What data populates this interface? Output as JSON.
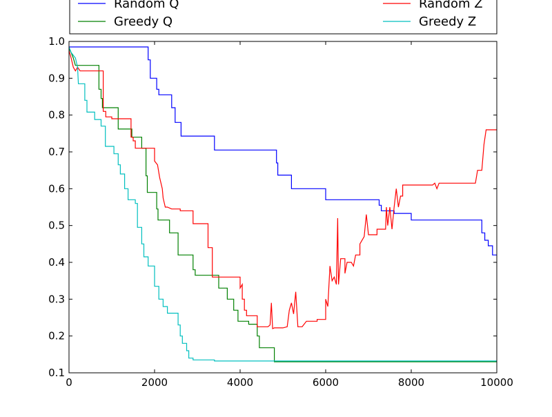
{
  "chart_data": {
    "type": "line",
    "xlim": [
      0,
      10000
    ],
    "ylim": [
      0.1,
      1.0
    ],
    "xticks": [
      "0",
      "2000",
      "4000",
      "6000",
      "8000",
      "10000"
    ],
    "yticks": [
      "0.1",
      "0.2",
      "0.3",
      "0.4",
      "0.5",
      "0.6",
      "0.7",
      "0.8",
      "0.9",
      "1.0"
    ],
    "grid": false,
    "legend": {
      "placement": "top (above plot, clipped)",
      "entries": [
        "Random Q",
        "Greedy Q",
        "Random Z",
        "Greedy Z"
      ]
    },
    "series": [
      {
        "name": "Random Q",
        "color": "#0000ff",
        "points": [
          [
            0,
            0.985
          ],
          [
            1850,
            0.985
          ],
          [
            1850,
            0.95
          ],
          [
            1900,
            0.95
          ],
          [
            1900,
            0.9
          ],
          [
            2050,
            0.9
          ],
          [
            2050,
            0.87
          ],
          [
            2100,
            0.87
          ],
          [
            2100,
            0.855
          ],
          [
            2400,
            0.855
          ],
          [
            2400,
            0.82
          ],
          [
            2480,
            0.82
          ],
          [
            2480,
            0.78
          ],
          [
            2620,
            0.78
          ],
          [
            2620,
            0.743
          ],
          [
            3400,
            0.743
          ],
          [
            3400,
            0.705
          ],
          [
            4850,
            0.705
          ],
          [
            4850,
            0.67
          ],
          [
            4880,
            0.67
          ],
          [
            4880,
            0.637
          ],
          [
            5200,
            0.637
          ],
          [
            5200,
            0.6
          ],
          [
            6000,
            0.6
          ],
          [
            6000,
            0.57
          ],
          [
            7250,
            0.57
          ],
          [
            7250,
            0.555
          ],
          [
            7300,
            0.555
          ],
          [
            7300,
            0.54
          ],
          [
            7600,
            0.54
          ],
          [
            7600,
            0.533
          ],
          [
            8000,
            0.533
          ],
          [
            8000,
            0.515
          ],
          [
            9650,
            0.515
          ],
          [
            9650,
            0.48
          ],
          [
            9720,
            0.48
          ],
          [
            9720,
            0.46
          ],
          [
            9800,
            0.46
          ],
          [
            9800,
            0.445
          ],
          [
            9900,
            0.445
          ],
          [
            9900,
            0.42
          ],
          [
            10000,
            0.42
          ]
        ]
      },
      {
        "name": "Greedy Q",
        "color": "#008000",
        "points": [
          [
            0,
            0.98
          ],
          [
            50,
            0.97
          ],
          [
            100,
            0.955
          ],
          [
            150,
            0.935
          ],
          [
            700,
            0.935
          ],
          [
            700,
            0.87
          ],
          [
            750,
            0.87
          ],
          [
            750,
            0.845
          ],
          [
            780,
            0.845
          ],
          [
            780,
            0.82
          ],
          [
            1150,
            0.82
          ],
          [
            1150,
            0.762
          ],
          [
            1470,
            0.762
          ],
          [
            1470,
            0.74
          ],
          [
            1700,
            0.74
          ],
          [
            1700,
            0.71
          ],
          [
            1800,
            0.71
          ],
          [
            1800,
            0.635
          ],
          [
            1830,
            0.635
          ],
          [
            1830,
            0.59
          ],
          [
            2050,
            0.59
          ],
          [
            2050,
            0.545
          ],
          [
            2080,
            0.545
          ],
          [
            2080,
            0.515
          ],
          [
            2350,
            0.515
          ],
          [
            2350,
            0.48
          ],
          [
            2550,
            0.48
          ],
          [
            2550,
            0.42
          ],
          [
            2900,
            0.42
          ],
          [
            2900,
            0.38
          ],
          [
            2950,
            0.38
          ],
          [
            2950,
            0.365
          ],
          [
            3500,
            0.365
          ],
          [
            3500,
            0.33
          ],
          [
            3700,
            0.33
          ],
          [
            3700,
            0.3
          ],
          [
            3850,
            0.3
          ],
          [
            3850,
            0.27
          ],
          [
            3950,
            0.27
          ],
          [
            3950,
            0.24
          ],
          [
            4200,
            0.24
          ],
          [
            4200,
            0.232
          ],
          [
            4400,
            0.232
          ],
          [
            4400,
            0.2
          ],
          [
            4450,
            0.2
          ],
          [
            4450,
            0.168
          ],
          [
            4800,
            0.168
          ],
          [
            4800,
            0.13
          ],
          [
            10000,
            0.13
          ]
        ]
      },
      {
        "name": "Random Z",
        "color": "#ff0000",
        "points": [
          [
            0,
            0.975
          ],
          [
            50,
            0.955
          ],
          [
            100,
            0.93
          ],
          [
            150,
            0.92
          ],
          [
            200,
            0.93
          ],
          [
            260,
            0.92
          ],
          [
            800,
            0.92
          ],
          [
            800,
            0.81
          ],
          [
            860,
            0.81
          ],
          [
            860,
            0.795
          ],
          [
            1000,
            0.795
          ],
          [
            1000,
            0.79
          ],
          [
            1450,
            0.79
          ],
          [
            1450,
            0.74
          ],
          [
            1500,
            0.74
          ],
          [
            1500,
            0.73
          ],
          [
            1550,
            0.73
          ],
          [
            1550,
            0.71
          ],
          [
            2000,
            0.71
          ],
          [
            2000,
            0.675
          ],
          [
            2070,
            0.665
          ],
          [
            2120,
            0.63
          ],
          [
            2180,
            0.6
          ],
          [
            2200,
            0.575
          ],
          [
            2250,
            0.55
          ],
          [
            2300,
            0.55
          ],
          [
            2400,
            0.545
          ],
          [
            2600,
            0.545
          ],
          [
            2600,
            0.54
          ],
          [
            2900,
            0.54
          ],
          [
            2900,
            0.505
          ],
          [
            3250,
            0.505
          ],
          [
            3250,
            0.44
          ],
          [
            3350,
            0.44
          ],
          [
            3350,
            0.36
          ],
          [
            4000,
            0.36
          ],
          [
            4000,
            0.33
          ],
          [
            4050,
            0.34
          ],
          [
            4050,
            0.3
          ],
          [
            4100,
            0.3
          ],
          [
            4100,
            0.27
          ],
          [
            4150,
            0.27
          ],
          [
            4150,
            0.255
          ],
          [
            4400,
            0.255
          ],
          [
            4400,
            0.225
          ],
          [
            4650,
            0.225
          ],
          [
            4650,
            0.225
          ],
          [
            4700,
            0.23
          ],
          [
            4730,
            0.29
          ],
          [
            4760,
            0.22
          ],
          [
            4800,
            0.222
          ],
          [
            4900,
            0.222
          ],
          [
            5000,
            0.222
          ],
          [
            5100,
            0.225
          ],
          [
            5150,
            0.27
          ],
          [
            5200,
            0.29
          ],
          [
            5250,
            0.26
          ],
          [
            5300,
            0.32
          ],
          [
            5350,
            0.225
          ],
          [
            5450,
            0.225
          ],
          [
            5550,
            0.24
          ],
          [
            5800,
            0.24
          ],
          [
            5800,
            0.245
          ],
          [
            6000,
            0.245
          ],
          [
            6000,
            0.3
          ],
          [
            6050,
            0.28
          ],
          [
            6100,
            0.39
          ],
          [
            6150,
            0.35
          ],
          [
            6200,
            0.36
          ],
          [
            6250,
            0.34
          ],
          [
            6280,
            0.52
          ],
          [
            6300,
            0.34
          ],
          [
            6350,
            0.41
          ],
          [
            6450,
            0.41
          ],
          [
            6450,
            0.37
          ],
          [
            6500,
            0.4
          ],
          [
            6600,
            0.4
          ],
          [
            6650,
            0.39
          ],
          [
            6700,
            0.42
          ],
          [
            6800,
            0.42
          ],
          [
            6800,
            0.45
          ],
          [
            6900,
            0.47
          ],
          [
            6950,
            0.53
          ],
          [
            7000,
            0.475
          ],
          [
            7200,
            0.475
          ],
          [
            7200,
            0.49
          ],
          [
            7400,
            0.49
          ],
          [
            7420,
            0.55
          ],
          [
            7450,
            0.5
          ],
          [
            7500,
            0.55
          ],
          [
            7550,
            0.49
          ],
          [
            7600,
            0.55
          ],
          [
            7650,
            0.6
          ],
          [
            7700,
            0.55
          ],
          [
            7750,
            0.58
          ],
          [
            7800,
            0.58
          ],
          [
            7800,
            0.61
          ],
          [
            8500,
            0.61
          ],
          [
            8550,
            0.615
          ],
          [
            8600,
            0.6
          ],
          [
            8650,
            0.615
          ],
          [
            9500,
            0.615
          ],
          [
            9550,
            0.65
          ],
          [
            9650,
            0.65
          ],
          [
            9700,
            0.72
          ],
          [
            9750,
            0.76
          ],
          [
            10000,
            0.76
          ]
        ]
      },
      {
        "name": "Greedy Z",
        "color": "#00bfbf",
        "points": [
          [
            0,
            0.985
          ],
          [
            50,
            0.97
          ],
          [
            150,
            0.955
          ],
          [
            200,
            0.93
          ],
          [
            220,
            0.885
          ],
          [
            370,
            0.885
          ],
          [
            370,
            0.84
          ],
          [
            420,
            0.84
          ],
          [
            420,
            0.808
          ],
          [
            600,
            0.808
          ],
          [
            600,
            0.788
          ],
          [
            750,
            0.788
          ],
          [
            750,
            0.77
          ],
          [
            850,
            0.77
          ],
          [
            850,
            0.715
          ],
          [
            1050,
            0.715
          ],
          [
            1050,
            0.695
          ],
          [
            1150,
            0.695
          ],
          [
            1150,
            0.665
          ],
          [
            1200,
            0.665
          ],
          [
            1200,
            0.64
          ],
          [
            1300,
            0.64
          ],
          [
            1300,
            0.6
          ],
          [
            1380,
            0.6
          ],
          [
            1380,
            0.57
          ],
          [
            1550,
            0.57
          ],
          [
            1550,
            0.56
          ],
          [
            1600,
            0.56
          ],
          [
            1600,
            0.495
          ],
          [
            1700,
            0.495
          ],
          [
            1700,
            0.45
          ],
          [
            1750,
            0.45
          ],
          [
            1750,
            0.415
          ],
          [
            1850,
            0.415
          ],
          [
            1850,
            0.39
          ],
          [
            2000,
            0.39
          ],
          [
            2000,
            0.335
          ],
          [
            2100,
            0.335
          ],
          [
            2100,
            0.3
          ],
          [
            2200,
            0.3
          ],
          [
            2200,
            0.28
          ],
          [
            2300,
            0.28
          ],
          [
            2300,
            0.262
          ],
          [
            2550,
            0.262
          ],
          [
            2550,
            0.23
          ],
          [
            2600,
            0.23
          ],
          [
            2600,
            0.2
          ],
          [
            2650,
            0.2
          ],
          [
            2650,
            0.18
          ],
          [
            2750,
            0.18
          ],
          [
            2750,
            0.16
          ],
          [
            2800,
            0.16
          ],
          [
            2800,
            0.14
          ],
          [
            2900,
            0.14
          ],
          [
            2900,
            0.135
          ],
          [
            3400,
            0.135
          ],
          [
            3400,
            0.132
          ],
          [
            10000,
            0.132
          ]
        ]
      }
    ]
  }
}
